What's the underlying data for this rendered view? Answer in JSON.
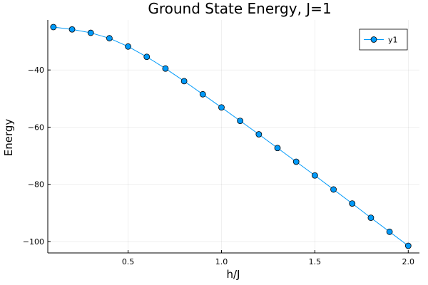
{
  "chart_data": {
    "type": "line",
    "title": "Ground State Energy, J=1",
    "xlabel": "h/J",
    "ylabel": "Energy",
    "xlim": [
      0.07,
      2.06
    ],
    "ylim": [
      -104,
      -22.5
    ],
    "xticks": [
      0.5,
      1.0,
      1.5,
      2.0
    ],
    "xtick_labels": [
      "0.5",
      "1.0",
      "1.5",
      "2.0"
    ],
    "yticks": [
      -40,
      -60,
      -80,
      -100
    ],
    "ytick_labels": [
      "−40",
      "−60",
      "−80",
      "−100"
    ],
    "grid": true,
    "legend": {
      "placement": "top-right",
      "entries": [
        "y1"
      ]
    },
    "series": [
      {
        "name": "y1",
        "color": "#009AFA",
        "marker": "circle",
        "x": [
          0.1,
          0.2,
          0.3,
          0.4,
          0.5,
          0.6,
          0.7,
          0.8,
          0.9,
          1.0,
          1.1,
          1.2,
          1.3,
          1.4,
          1.5,
          1.6,
          1.7,
          1.8,
          1.9,
          2.0
        ],
        "y": [
          -25.0,
          -25.8,
          -27.0,
          -28.9,
          -31.8,
          -35.4,
          -39.5,
          -43.9,
          -48.5,
          -53.1,
          -57.8,
          -62.5,
          -67.3,
          -72.1,
          -76.9,
          -81.8,
          -86.7,
          -91.7,
          -96.6,
          -101.5
        ]
      }
    ]
  }
}
